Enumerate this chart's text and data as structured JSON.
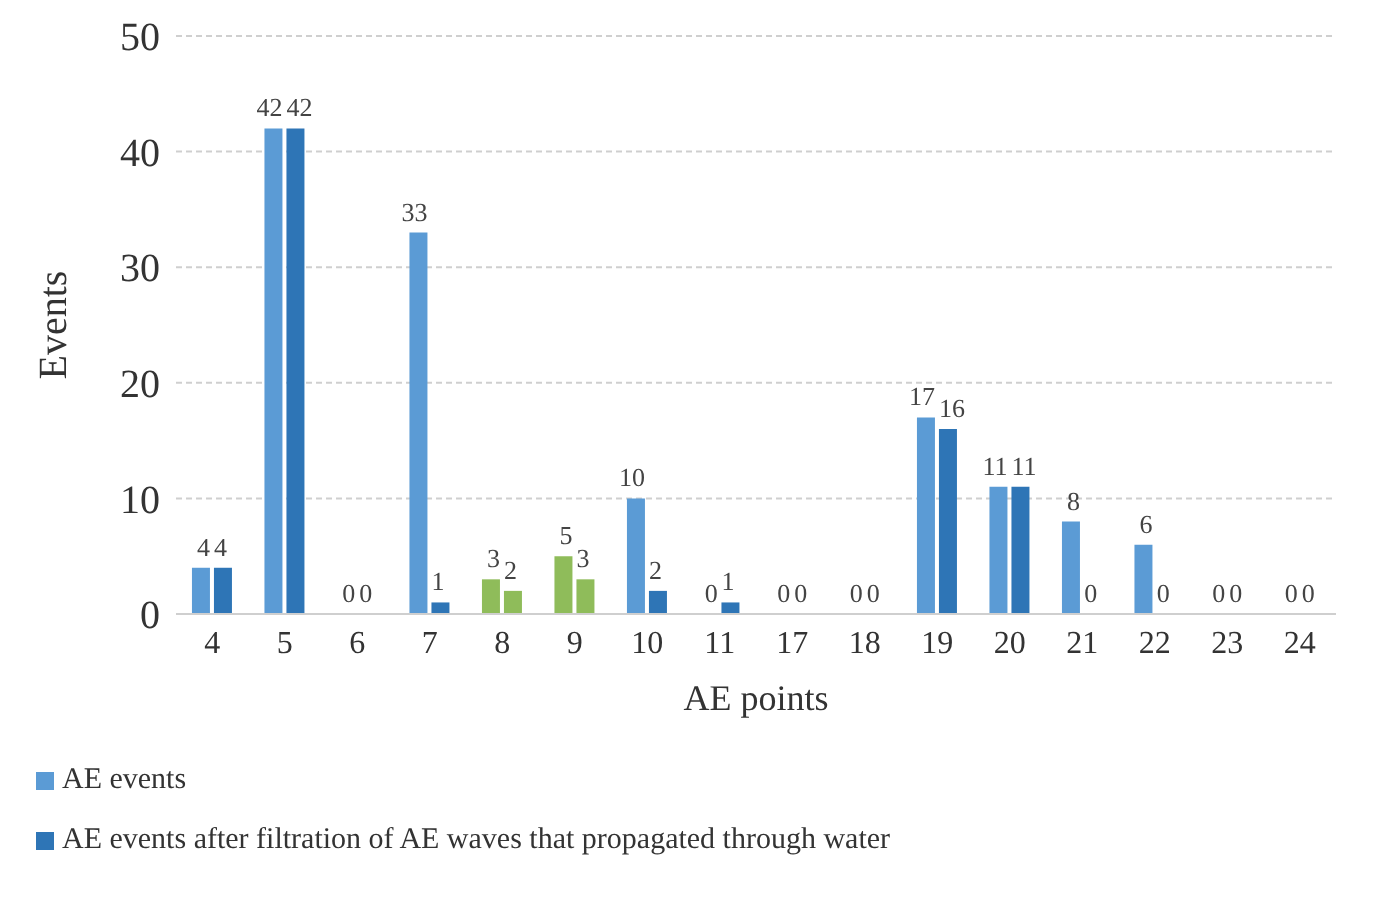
{
  "chart_data": {
    "type": "bar",
    "xlabel": "AE points",
    "ylabel": "Events",
    "categories": [
      "4",
      "5",
      "6",
      "7",
      "8",
      "9",
      "10",
      "11",
      "17",
      "18",
      "19",
      "20",
      "21",
      "22",
      "23",
      "24"
    ],
    "series": [
      {
        "name": "AE events",
        "color": "#5b9bd5",
        "colors": [
          "#5b9bd5",
          "#5b9bd5",
          "#5b9bd5",
          "#5b9bd5",
          "#8fbc5a",
          "#8fbc5a",
          "#5b9bd5",
          "#5b9bd5",
          "#5b9bd5",
          "#5b9bd5",
          "#5b9bd5",
          "#5b9bd5",
          "#5b9bd5",
          "#5b9bd5",
          "#5b9bd5",
          "#5b9bd5"
        ],
        "values": [
          4,
          42,
          0,
          33,
          3,
          5,
          10,
          0,
          0,
          0,
          17,
          11,
          8,
          6,
          0,
          0
        ]
      },
      {
        "name": "AE events after filtration of AE waves that propagated through water",
        "color": "#2e75b6",
        "colors": [
          "#2e75b6",
          "#2e75b6",
          "#2e75b6",
          "#2e75b6",
          "#8fbc5a",
          "#8fbc5a",
          "#2e75b6",
          "#2e75b6",
          "#2e75b6",
          "#2e75b6",
          "#2e75b6",
          "#2e75b6",
          "#2e75b6",
          "#2e75b6",
          "#2e75b6",
          "#2e75b6"
        ],
        "values": [
          4,
          42,
          0,
          1,
          2,
          3,
          2,
          1,
          0,
          0,
          16,
          11,
          0,
          0,
          0,
          0
        ]
      }
    ],
    "ylim": [
      0,
      50
    ],
    "yticks": [
      0,
      10,
      20,
      30,
      40,
      50
    ],
    "grid": "y",
    "legend": "bottom",
    "data_labels": true
  }
}
